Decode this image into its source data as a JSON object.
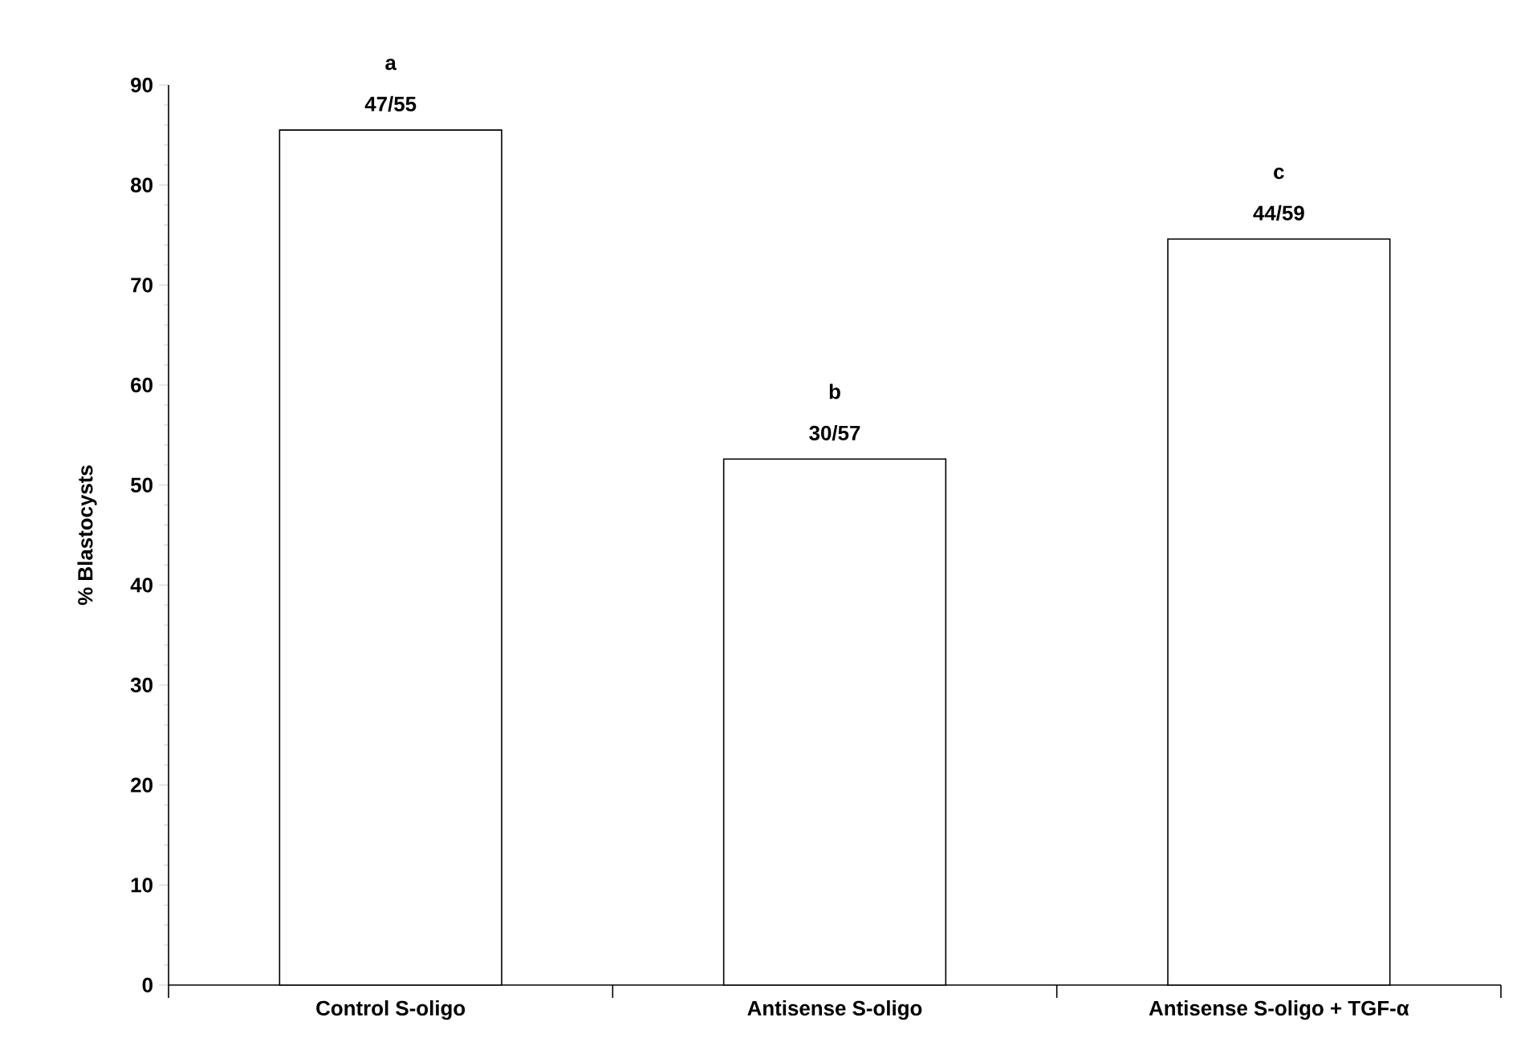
{
  "chart_data": {
    "type": "bar",
    "ylabel": "% Blastocysts",
    "categories": [
      "Control S-oligo",
      "Antisense S-oligo",
      "Antisense S-oligo + TGF-α"
    ],
    "values": [
      85.5,
      52.6,
      74.6
    ],
    "color": "#000000",
    "ylim": [
      0,
      90
    ],
    "yticks": [
      0,
      10,
      20,
      30,
      40,
      50,
      60,
      70,
      80,
      90
    ],
    "grid": false,
    "annotations": [
      {
        "text": "47/55",
        "x": "Control S-oligo",
        "y": 85.5
      },
      {
        "text": "a",
        "x": "Control S-oligo",
        "y": 85.5
      },
      {
        "text": "30/57",
        "x": "Antisense S-oligo",
        "y": 52.6
      },
      {
        "text": "b",
        "x": "Antisense S-oligo",
        "y": 52.6
      },
      {
        "text": "44/59",
        "x": "Antisense S-oligo + TGF-α",
        "y": 74.6
      },
      {
        "text": "c",
        "x": "Antisense S-oligo + TGF-α",
        "y": 74.6
      }
    ]
  }
}
